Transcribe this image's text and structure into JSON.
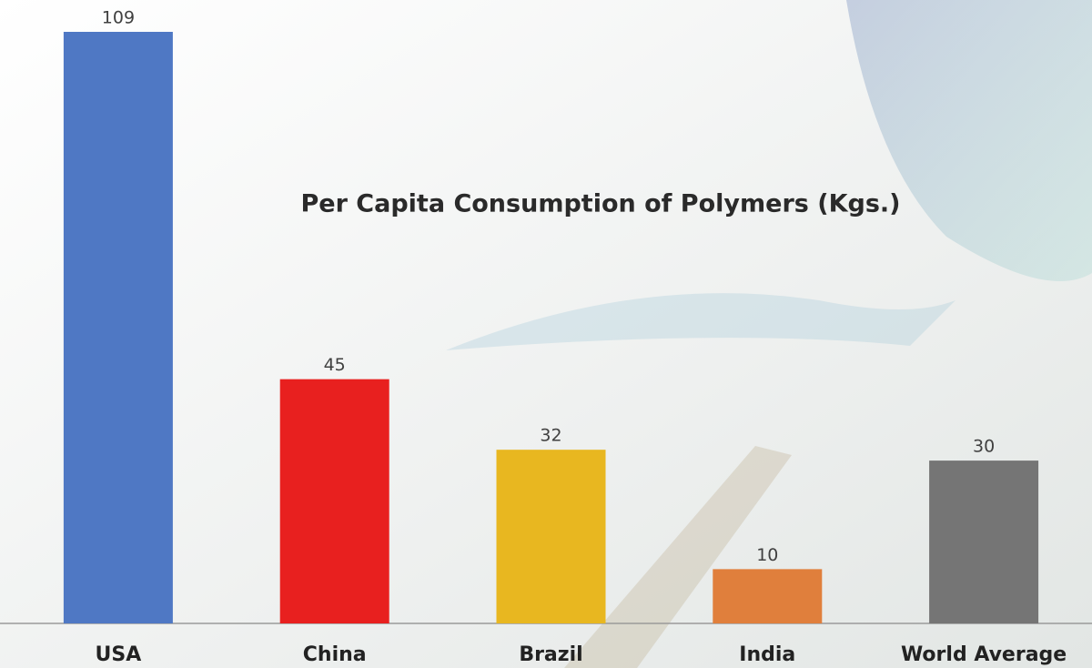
{
  "chart_data": {
    "type": "bar",
    "title": "Per Capita Consumption of Polymers (Kgs.)",
    "categories": [
      "USA",
      "China",
      "Brazil",
      "India",
      "World Average"
    ],
    "values": [
      109,
      45,
      32,
      10,
      30
    ],
    "colors": [
      "#4f78c4",
      "#e8201f",
      "#e8b720",
      "#e07f3c",
      "#757575"
    ]
  }
}
